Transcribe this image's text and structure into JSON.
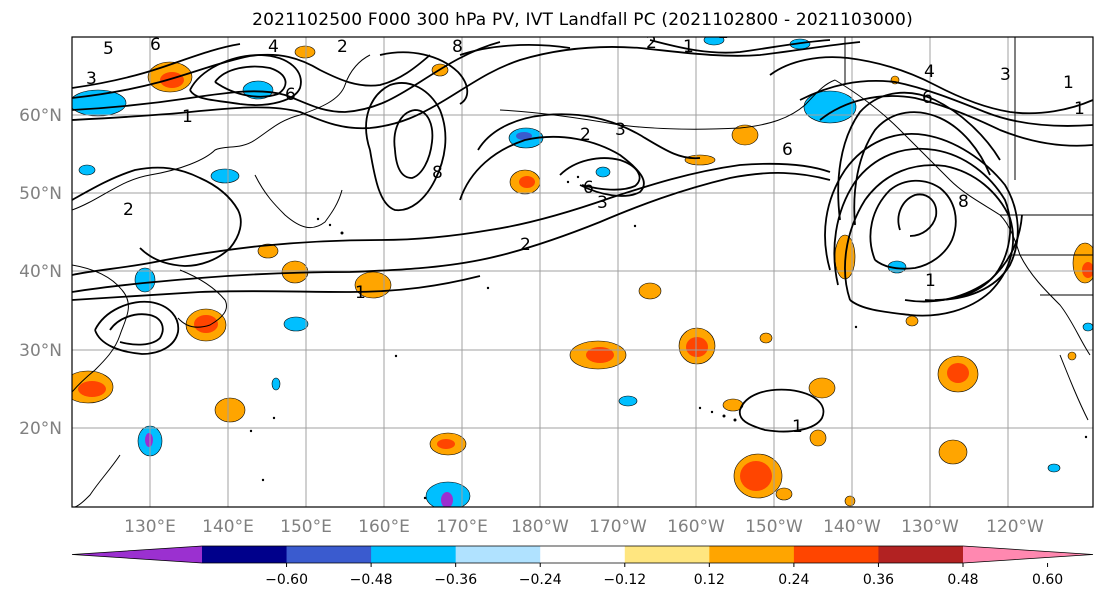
{
  "title": "2021102500 F000 300 hPa PV, IVT Landfall PC (2021102800 - 2021103000)",
  "lat_labels": [
    "60°N",
    "50°N",
    "40°N",
    "30°N",
    "20°N"
  ],
  "lon_labels": [
    "130°E",
    "140°E",
    "150°E",
    "160°E",
    "170°E",
    "180°W",
    "170°W",
    "160°W",
    "150°W",
    "140°W",
    "130°W",
    "120°W"
  ],
  "colorbar": {
    "ticks": [
      "−0.60",
      "−0.48",
      "−0.36",
      "−0.24",
      "−0.12",
      "0.12",
      "0.24",
      "0.36",
      "0.48",
      "0.60"
    ],
    "colors": [
      "#9b30d0",
      "#00008b",
      "#3a5bcf",
      "#00bfff",
      "#b0e2ff",
      "#ffffff",
      "#ffe680",
      "#ffa500",
      "#ff4500",
      "#b22222",
      "#ff88b0"
    ]
  },
  "contour_labels": [
    "6",
    "5",
    "4",
    "2",
    "8",
    "3",
    "1",
    "6",
    "2",
    "1",
    "2",
    "2",
    "3",
    "6",
    "8",
    "3",
    "2",
    "1",
    "2",
    "1",
    "3",
    "4",
    "6",
    "1",
    "6",
    "8",
    "1",
    "1"
  ],
  "map": {
    "projection": "cylindrical",
    "lon_range": [
      "120°E",
      "110°W"
    ],
    "lat_range": [
      "10°N",
      "70°N"
    ],
    "contour_field": "300 hPa PV",
    "shaded_field": "IVT Landfall PC"
  }
}
